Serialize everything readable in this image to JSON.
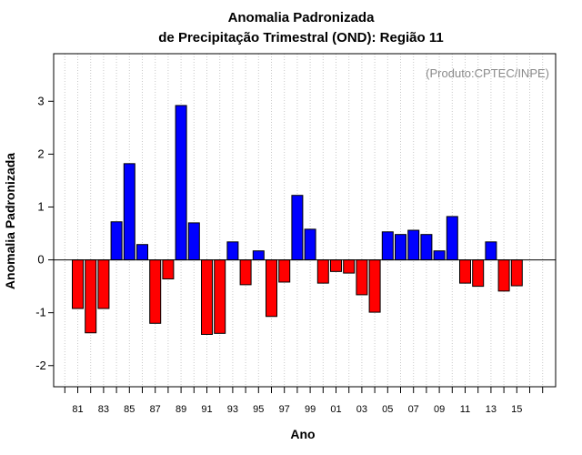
{
  "chart_data": {
    "type": "bar",
    "title": "Anomalia Padronizada",
    "subtitle": "de Precipitação Trimestral (OND): Região 11",
    "xlabel": "Ano",
    "ylabel": "Anomalia Padronizada",
    "annotation": "(Produto:CPTEC/INPE)",
    "ylim": [
      -2.4,
      3.9
    ],
    "yticks": [
      -2,
      -1,
      0,
      1,
      2,
      3
    ],
    "ytick_labels": [
      "-2",
      "-1",
      "0",
      "1",
      "2",
      "3"
    ],
    "xtick_labels": [
      "81",
      "83",
      "85",
      "87",
      "89",
      "91",
      "93",
      "95",
      "97",
      "99",
      "01",
      "03",
      "05",
      "07",
      "09",
      "11",
      "13",
      "15"
    ],
    "categories": [
      1981,
      1982,
      1983,
      1984,
      1985,
      1986,
      1987,
      1988,
      1989,
      1990,
      1991,
      1992,
      1993,
      1994,
      1995,
      1996,
      1997,
      1998,
      1999,
      2000,
      2001,
      2002,
      2003,
      2004,
      2005,
      2006,
      2007,
      2008,
      2009,
      2010,
      2011,
      2012,
      2013,
      2014,
      2015
    ],
    "values": [
      -0.92,
      -1.38,
      -0.92,
      0.72,
      1.82,
      0.29,
      -1.2,
      -0.36,
      2.92,
      0.7,
      -1.41,
      -1.39,
      0.34,
      -0.47,
      0.17,
      -1.07,
      -0.42,
      1.22,
      0.58,
      -0.44,
      -0.22,
      -0.25,
      -0.66,
      -0.99,
      0.53,
      0.48,
      0.56,
      0.48,
      0.17,
      0.82,
      -0.44,
      -0.5,
      0.34,
      -0.59,
      -0.49
    ],
    "grid": "vertical dotted",
    "colors": {
      "positive": "#0000ff",
      "negative": "#ff0000",
      "grid": "#c8c8c8",
      "annotation": "#8a8a8a"
    }
  }
}
